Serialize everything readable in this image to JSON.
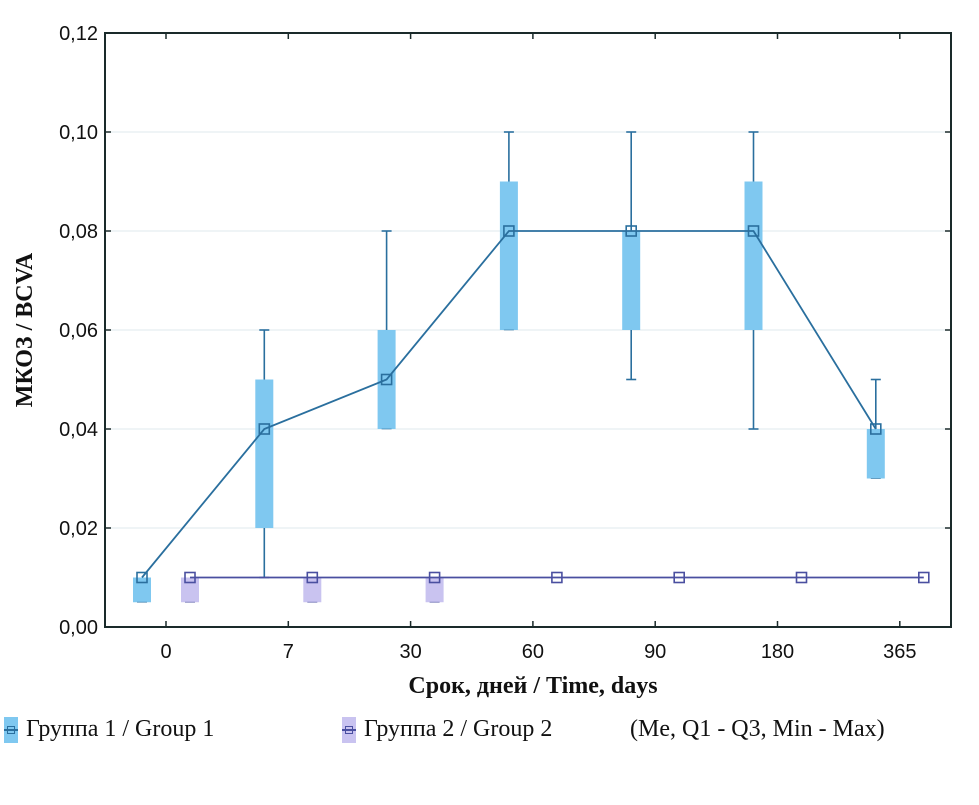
{
  "chart_data": {
    "type": "boxplot-line",
    "title": "",
    "xlabel": "Срок, дней / Time, days",
    "ylabel": "МКОЗ / BCVA",
    "categories": [
      "0",
      "7",
      "30",
      "60",
      "90",
      "180",
      "365"
    ],
    "ylim": [
      0,
      0.12
    ],
    "yticks": [
      0,
      0.02,
      0.04,
      0.06,
      0.08,
      0.1,
      0.12
    ],
    "ytick_labels": [
      "0,00",
      "0,02",
      "0,04",
      "0,06",
      "0,08",
      "0,10",
      "0,12"
    ],
    "grid": true,
    "legend_position": "bottom",
    "statistics_note": "(Me, Q1 - Q3, Min - Max)",
    "series": [
      {
        "name": "Группа 1 / Group 1",
        "color_line": "#2a6f9e",
        "color_box": "#7fc8f0",
        "median": [
          0.01,
          0.04,
          0.05,
          0.08,
          0.08,
          0.08,
          0.04
        ],
        "q1": [
          0.005,
          0.02,
          0.04,
          0.06,
          0.06,
          0.06,
          0.03
        ],
        "q3": [
          0.01,
          0.05,
          0.06,
          0.09,
          0.08,
          0.09,
          0.04
        ],
        "min": [
          0.005,
          0.01,
          0.04,
          0.06,
          0.05,
          0.04,
          0.03
        ],
        "max": [
          0.01,
          0.06,
          0.08,
          0.1,
          0.1,
          0.1,
          0.05
        ]
      },
      {
        "name": "Группа 2 / Group 2",
        "color_line": "#4a4fa0",
        "color_box": "#c9c3f0",
        "median": [
          0.01,
          0.01,
          0.01,
          0.01,
          0.01,
          0.01,
          0.01
        ],
        "q1": [
          0.005,
          0.005,
          0.005,
          0.01,
          0.01,
          0.01,
          0.01
        ],
        "q3": [
          0.01,
          0.01,
          0.01,
          0.01,
          0.01,
          0.01,
          0.01
        ],
        "min": [
          0.005,
          0.005,
          0.005,
          0.01,
          0.01,
          0.01,
          0.01
        ],
        "max": [
          0.01,
          0.01,
          0.01,
          0.01,
          0.01,
          0.01,
          0.01
        ]
      }
    ]
  },
  "legend": {
    "group1_label": "Группа 1 / Group 1",
    "group2_label": "Группа 2 / Group 2",
    "note": "(Me, Q1 - Q3, Min - Max)"
  },
  "colors": {
    "axis": "#1a2a2a",
    "grid": "#dfe9ec",
    "group1_line": "#2a6f9e",
    "group1_box": "#7fc8f0",
    "group2_line": "#4a4fa0",
    "group2_box": "#c9c3f0"
  }
}
